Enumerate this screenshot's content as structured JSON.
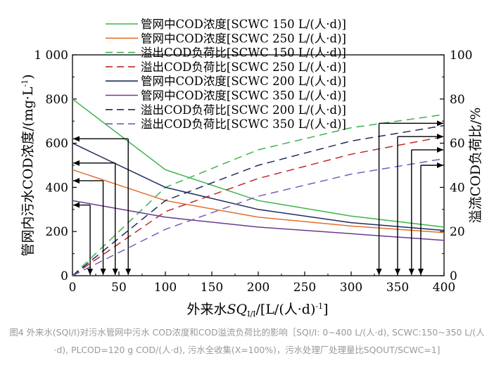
{
  "chart_data": {
    "type": "line",
    "xlabel": "外来水SQI/I/[L/(人·d)-1]",
    "xlabel_parts": {
      "prefix": "外来水",
      "sq": "SQ",
      "sub": "I/I",
      "suffix": "/[L/(人·d)",
      "sup": "-1",
      "close": "]"
    },
    "ylabel_left": "管网内污水COD浓度/(mg·L-1)",
    "ylabel_left_parts": {
      "text": "管网内污水COD浓度/(mg·L",
      "sup": "-1",
      "close": ")"
    },
    "ylabel_right": "溢流COD负荷比/%",
    "xlim": [
      0,
      400
    ],
    "ylim_left": [
      0,
      1000
    ],
    "ylim_right": [
      0,
      100
    ],
    "x_ticks": [
      "0",
      "50",
      "100",
      "150",
      "200",
      "250",
      "300",
      "350",
      "400"
    ],
    "y_left_ticks": [
      "0",
      "200",
      "400",
      "600",
      "800",
      "1 000"
    ],
    "y_right_ticks": [
      "0",
      "20",
      "40",
      "60",
      "80",
      "100"
    ],
    "x": [
      0,
      100,
      200,
      300,
      400
    ],
    "series": [
      {
        "name": "管网中COD浓度[SCWC 150 L/(人·d)]",
        "axis": "left",
        "color": "#3cb44b",
        "dash": false,
        "values": [
          800,
          480,
          340,
          270,
          220
        ]
      },
      {
        "name": "管网中COD浓度[SCWC 250 L/(人·d)]",
        "axis": "left",
        "color": "#e0702a",
        "dash": false,
        "values": [
          480,
          340,
          265,
          225,
          195
        ]
      },
      {
        "name": "溢出COD负荷比[SCWC 150 L/(人·d)]",
        "axis": "right",
        "color": "#3cb44b",
        "dash": true,
        "values": [
          0,
          40,
          57,
          67,
          73
        ]
      },
      {
        "name": "溢出COD负荷比[SCWC 250 L/(人·d)]",
        "axis": "right",
        "color": "#c0282d",
        "dash": true,
        "values": [
          0,
          29,
          44,
          55,
          63
        ]
      },
      {
        "name": "管网中COD浓度[SCWC 200 L/(人·d)]",
        "axis": "left",
        "color": "#1f2d5c",
        "dash": false,
        "values": [
          600,
          400,
          300,
          240,
          205
        ]
      },
      {
        "name": "管网中COD浓度[SCWC 350 L/(人·d)]",
        "axis": "left",
        "color": "#6a3a8e",
        "dash": false,
        "values": [
          340,
          265,
          220,
          190,
          160
        ]
      },
      {
        "name": "溢出COD负荷比[SCWC 200 L/(人·d)]",
        "axis": "right",
        "color": "#1f2d5c",
        "dash": true,
        "values": [
          0,
          34,
          50,
          61,
          68
        ]
      },
      {
        "name": "溢出COD负荷比[SCWC 350 L/(人·d)]",
        "axis": "right",
        "color": "#7a5cb8",
        "dash": true,
        "values": [
          0,
          21,
          36,
          46,
          53
        ]
      }
    ],
    "arrows_left": [
      {
        "y": 620,
        "x": 60
      },
      {
        "y": 510,
        "x": 46
      },
      {
        "y": 430,
        "x": 33
      },
      {
        "y": 320,
        "x": 19
      }
    ],
    "arrows_right": [
      {
        "y": 69,
        "x": 330
      },
      {
        "y": 63,
        "x": 350
      },
      {
        "y": 57,
        "x": 365
      },
      {
        "y": 50,
        "x": 375
      }
    ],
    "legend_position": "top-center",
    "grid": false
  },
  "caption": "图4 外来水(SQI/I)对污水管网中污水 COD浓度和COD溢流负荷比的影响［SQI/I: 0~400 L/(人·d), SCWC:150~350 L/(人·d), PLCOD=120 g COD/(人·d), 污水全收集(X=100%)，污水处理厂处理量比SQOUT/SCWC=1]"
}
